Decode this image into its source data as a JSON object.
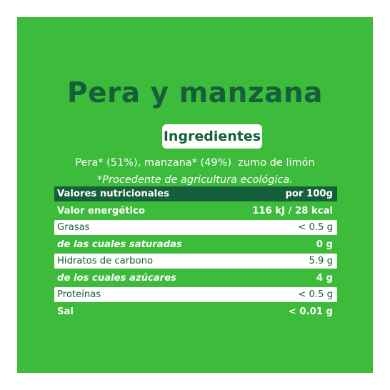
{
  "product": {
    "title": "Pera y manzana"
  },
  "ingredients": {
    "heading": "Ingredientes",
    "text": "Pera* (51%), manzana* (49%)  zumo de limón",
    "note": "*Procedente de agricultura ecológica."
  },
  "nutrition": {
    "header_label": "Valores nutricionales",
    "header_value": "por 100g",
    "rows": [
      {
        "label": "Valor energético",
        "value": "116 kJ / 28 kcal"
      },
      {
        "label": "Grasas",
        "value": "< 0.5 g"
      },
      {
        "label": "de las cuales saturadas",
        "value": "0 g"
      },
      {
        "label": "Hidratos de carbono",
        "value": "5.9 g"
      },
      {
        "label": "de los cuales azúcares",
        "value": "4 g"
      },
      {
        "label": "Proteínas",
        "value": "< 0.5 g"
      },
      {
        "label": "Sal",
        "value": "< 0.01 g"
      }
    ]
  },
  "colors": {
    "background": "#3dbb3a",
    "dark_green": "#15603a",
    "white": "#ffffff"
  }
}
